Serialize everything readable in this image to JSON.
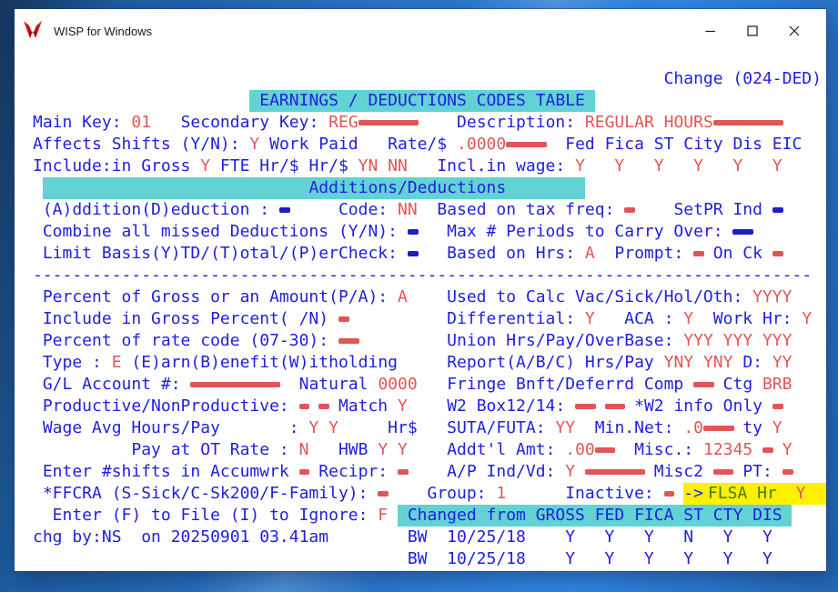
{
  "colors": {
    "blue": "#2020dd",
    "red": "#e25555",
    "navy": "#1e1ec4",
    "cyan": "#62d2d4",
    "yellow": "#fdf000",
    "green": "#447d04"
  },
  "window": {
    "title": "WISP for Windows"
  },
  "screen": {
    "lines": [
      {
        "name": "row-change-mode",
        "segs": [
          {
            "t": "                                                                ",
            "c": "b"
          },
          {
            "t": "Change (024-DED)",
            "c": "b",
            "n": "mode-indicator"
          }
        ]
      },
      {
        "name": "row-screen-title",
        "segs": [
          {
            "t": "                      ",
            "c": "b"
          },
          {
            "t": " EARNINGS / DEDUCTIONS CODES TABLE ",
            "c": "b",
            "bg": "c",
            "n": "screen-title"
          }
        ]
      },
      {
        "name": "row-main-key",
        "segs": [
          {
            "t": "Main Key: ",
            "c": "b"
          },
          {
            "t": "01",
            "c": "r",
            "n": "main-key-value"
          },
          {
            "t": "   ",
            "c": "b"
          },
          {
            "t": "Secondary Key: ",
            "c": "b"
          },
          {
            "t": "REG",
            "c": "r",
            "n": "secondary-key-value"
          },
          {
            "bar": 6,
            "c": "r"
          },
          {
            "t": "    ",
            "c": "b"
          },
          {
            "t": "Description: ",
            "c": "b"
          },
          {
            "t": "REGULAR HOURS",
            "c": "r",
            "n": "description-value"
          },
          {
            "bar": 7,
            "c": "r"
          }
        ]
      },
      {
        "name": "row-affects-shifts",
        "segs": [
          {
            "t": "Affects Shifts (Y/N): ",
            "c": "b"
          },
          {
            "t": "Y",
            "c": "r"
          },
          {
            "t": " Work Paid",
            "c": "b"
          },
          {
            "t": "   ",
            "c": "b"
          },
          {
            "t": "Rate/$ ",
            "c": "b"
          },
          {
            "t": ".0000",
            "c": "r"
          },
          {
            "bar": 4,
            "c": "r"
          },
          {
            "t": "  ",
            "c": "b"
          },
          {
            "t": "Fed Fica ST City Dis EIC",
            "c": "b"
          }
        ]
      },
      {
        "name": "row-include-gross",
        "segs": [
          {
            "t": "Include:in Gross ",
            "c": "b"
          },
          {
            "t": "Y",
            "c": "r"
          },
          {
            "t": " ",
            "c": "b"
          },
          {
            "t": "FTE Hr/$ Hr/$ ",
            "c": "b"
          },
          {
            "t": "YN NN",
            "c": "r"
          },
          {
            "t": "   ",
            "c": "b"
          },
          {
            "t": "Incl.in wage: ",
            "c": "b"
          },
          {
            "t": "Y   Y   Y   Y   Y   Y",
            "c": "r"
          }
        ]
      },
      {
        "name": "row-section-additions",
        "segs": [
          {
            "t": " ",
            "c": "b"
          },
          {
            "t": "                           Additions/Deductions        ",
            "c": "b",
            "bg": "c",
            "n": "section-additions-deductions"
          }
        ]
      },
      {
        "name": "row-addition-deduction",
        "segs": [
          {
            "t": " (A)ddition(D)eduction : ",
            "c": "b"
          },
          {
            "bar": 1,
            "c": "n"
          },
          {
            "t": "     ",
            "c": "b"
          },
          {
            "t": "Code: ",
            "c": "b"
          },
          {
            "t": "NN",
            "c": "r",
            "n": "code-value"
          },
          {
            "t": "  ",
            "c": "b"
          },
          {
            "t": "Based on tax freq: ",
            "c": "b"
          },
          {
            "bar": 1,
            "c": "r"
          },
          {
            "t": "    ",
            "c": "b"
          },
          {
            "t": "SetPR Ind ",
            "c": "b"
          },
          {
            "bar": 1,
            "c": "n"
          }
        ]
      },
      {
        "name": "row-combine-missed",
        "segs": [
          {
            "t": " Combine all missed Deductions (Y/N): ",
            "c": "b"
          },
          {
            "bar": 1,
            "c": "n"
          },
          {
            "t": "   ",
            "c": "b"
          },
          {
            "t": "Max # Periods to Carry Over: ",
            "c": "b"
          },
          {
            "bar": 2,
            "c": "n"
          }
        ]
      },
      {
        "name": "row-limit-basis",
        "segs": [
          {
            "t": " Limit Basis(Y)TD/(T)otal/(P)erCheck: ",
            "c": "b"
          },
          {
            "bar": 1,
            "c": "n"
          },
          {
            "t": "   ",
            "c": "b"
          },
          {
            "t": "Based on Hrs: ",
            "c": "b"
          },
          {
            "t": "A",
            "c": "r"
          },
          {
            "t": "  ",
            "c": "b"
          },
          {
            "t": "Prompt: ",
            "c": "b"
          },
          {
            "bar": 1,
            "c": "r"
          },
          {
            "t": " ",
            "c": "b"
          },
          {
            "t": "On Ck ",
            "c": "b"
          },
          {
            "bar": 1,
            "c": "r"
          }
        ]
      },
      {
        "name": "row-separator",
        "segs": [
          {
            "t": "-------------------------------------------------------------------------------",
            "c": "b",
            "n": "separator"
          }
        ]
      },
      {
        "name": "row-percent-gross",
        "segs": [
          {
            "t": " Percent of Gross or an Amount(P/A): ",
            "c": "b"
          },
          {
            "t": "A",
            "c": "r"
          },
          {
            "t": "    ",
            "c": "b"
          },
          {
            "t": "Used to Calc Vac/Sick/Hol/Oth: ",
            "c": "b"
          },
          {
            "t": "YYYY",
            "c": "r"
          }
        ]
      },
      {
        "name": "row-include-gross-percent",
        "segs": [
          {
            "t": " Include in Gross Percent( /N) ",
            "c": "b"
          },
          {
            "bar": 1,
            "c": "r"
          },
          {
            "t": "          ",
            "c": "b"
          },
          {
            "t": "Differential: ",
            "c": "b"
          },
          {
            "t": "Y",
            "c": "r"
          },
          {
            "t": "   ",
            "c": "b"
          },
          {
            "t": "ACA : ",
            "c": "b"
          },
          {
            "t": "Y",
            "c": "r"
          },
          {
            "t": "  ",
            "c": "b"
          },
          {
            "t": "Work Hr: ",
            "c": "b"
          },
          {
            "t": "Y",
            "c": "r"
          }
        ]
      },
      {
        "name": "row-percent-rate-code",
        "segs": [
          {
            "t": " Percent of rate code (07-30): ",
            "c": "b"
          },
          {
            "bar": 2,
            "c": "r"
          },
          {
            "t": "         ",
            "c": "b"
          },
          {
            "t": "Union Hrs/Pay/OverBase: ",
            "c": "b"
          },
          {
            "t": "YYY YYY YYY",
            "c": "r"
          }
        ]
      },
      {
        "name": "row-type",
        "segs": [
          {
            "t": " Type : ",
            "c": "b"
          },
          {
            "t": "E",
            "c": "r",
            "n": "type-value"
          },
          {
            "t": " ",
            "c": "b"
          },
          {
            "t": "(E)arn(B)enefit(W)itholding",
            "c": "b"
          },
          {
            "t": "     ",
            "c": "b"
          },
          {
            "t": "Report(A/B/C) Hrs/Pay ",
            "c": "b"
          },
          {
            "t": "YNY YNY",
            "c": "r"
          },
          {
            "t": " ",
            "c": "b"
          },
          {
            "t": "D: ",
            "c": "b"
          },
          {
            "t": "YY",
            "c": "r"
          }
        ]
      },
      {
        "name": "row-gl-account",
        "segs": [
          {
            "t": " G/L Account #: ",
            "c": "b"
          },
          {
            "bar": 9,
            "c": "r"
          },
          {
            "t": "  ",
            "c": "b"
          },
          {
            "t": "Natural ",
            "c": "b"
          },
          {
            "t": "0000",
            "c": "r",
            "n": "natural-value"
          },
          {
            "t": "   ",
            "c": "b"
          },
          {
            "t": "Fringe Bnft/Deferrd Comp ",
            "c": "b"
          },
          {
            "bar": 2,
            "c": "r"
          },
          {
            "t": " ",
            "c": "b"
          },
          {
            "t": "Ctg ",
            "c": "b"
          },
          {
            "t": "BRB",
            "c": "r",
            "n": "ctg-value"
          }
        ]
      },
      {
        "name": "row-productive",
        "segs": [
          {
            "t": " Productive/NonProductive: ",
            "c": "b"
          },
          {
            "bar": 1,
            "c": "r"
          },
          {
            "t": " ",
            "c": "b"
          },
          {
            "bar": 1,
            "c": "r"
          },
          {
            "t": " ",
            "c": "b"
          },
          {
            "t": "Match ",
            "c": "b"
          },
          {
            "t": "Y",
            "c": "r"
          },
          {
            "t": "    ",
            "c": "b"
          },
          {
            "t": "W2 Box12/14: ",
            "c": "b"
          },
          {
            "bar": 2,
            "c": "r"
          },
          {
            "t": " ",
            "c": "b"
          },
          {
            "bar": 2,
            "c": "r"
          },
          {
            "t": " ",
            "c": "b"
          },
          {
            "t": "*W2 info Only ",
            "c": "b"
          },
          {
            "bar": 1,
            "c": "r"
          }
        ]
      },
      {
        "name": "row-wage-avg",
        "segs": [
          {
            "t": " Wage Avg Hours/Pay       : ",
            "c": "b"
          },
          {
            "t": "Y Y",
            "c": "r"
          },
          {
            "t": "     ",
            "c": "b"
          },
          {
            "t": "Hr$",
            "c": "b"
          },
          {
            "t": "   ",
            "c": "b"
          },
          {
            "t": "SUTA/FUTA: ",
            "c": "b"
          },
          {
            "t": "YY",
            "c": "r"
          },
          {
            "t": "  ",
            "c": "b"
          },
          {
            "t": "Min.Net: ",
            "c": "b"
          },
          {
            "t": ".0",
            "c": "r"
          },
          {
            "bar": 3,
            "c": "r"
          },
          {
            "t": " ",
            "c": "b"
          },
          {
            "t": "ty ",
            "c": "b"
          },
          {
            "t": "Y",
            "c": "r"
          }
        ]
      },
      {
        "name": "row-pay-ot",
        "segs": [
          {
            "t": "          Pay at OT Rate : ",
            "c": "b"
          },
          {
            "t": "N",
            "c": "r"
          },
          {
            "t": "   ",
            "c": "b"
          },
          {
            "t": "HWB ",
            "c": "b"
          },
          {
            "t": "Y Y",
            "c": "r"
          },
          {
            "t": "    ",
            "c": "b"
          },
          {
            "t": "Addt'l Amt: ",
            "c": "b"
          },
          {
            "t": ".00",
            "c": "r"
          },
          {
            "bar": 2,
            "c": "r"
          },
          {
            "t": "  ",
            "c": "b"
          },
          {
            "t": "Misc.: ",
            "c": "b"
          },
          {
            "t": "12345",
            "c": "r",
            "n": "misc-value"
          },
          {
            "t": " ",
            "c": "b"
          },
          {
            "bar": 1,
            "c": "r"
          },
          {
            "t": " ",
            "c": "b"
          },
          {
            "t": "Y",
            "c": "r"
          }
        ]
      },
      {
        "name": "row-enter-shifts",
        "segs": [
          {
            "t": " Enter #shifts in Accumwrk ",
            "c": "b"
          },
          {
            "bar": 1,
            "c": "r"
          },
          {
            "t": " ",
            "c": "b"
          },
          {
            "t": "Recipr: ",
            "c": "b"
          },
          {
            "bar": 1,
            "c": "r"
          },
          {
            "t": "    ",
            "c": "b"
          },
          {
            "t": "A/P Ind/Vd: ",
            "c": "b"
          },
          {
            "t": "Y",
            "c": "r"
          },
          {
            "t": " ",
            "c": "b"
          },
          {
            "bar": 6,
            "c": "r"
          },
          {
            "t": " ",
            "c": "b"
          },
          {
            "t": "Misc2 ",
            "c": "b"
          },
          {
            "bar": 2,
            "c": "r"
          },
          {
            "t": " ",
            "c": "b"
          },
          {
            "t": "PT: ",
            "c": "b"
          },
          {
            "bar": 1,
            "c": "r"
          }
        ]
      },
      {
        "name": "row-ffcra",
        "segs": [
          {
            "t": " *FFCRA (S-Sick/C-Sk200/F-Family): ",
            "c": "b"
          },
          {
            "bar": 1,
            "c": "r"
          },
          {
            "t": "    ",
            "c": "b"
          },
          {
            "t": "Group: ",
            "c": "b"
          },
          {
            "t": "1",
            "c": "r",
            "n": "group-value"
          },
          {
            "t": "      ",
            "c": "b"
          },
          {
            "t": "Inactive: ",
            "c": "b"
          },
          {
            "bar": 1,
            "c": "r"
          },
          {
            "t": " ",
            "c": "b"
          },
          {
            "t": "->",
            "c": "b",
            "bg": "y",
            "n": "flsa-arrow"
          },
          {
            "t": "FLSA Hr",
            "c": "g",
            "bg": "y",
            "n": "flsa-label"
          },
          {
            "t": " ",
            "c": "g",
            "bg": "y"
          },
          {
            "t": "Y",
            "c": "r",
            "bg": "y",
            "n": "flsa-value"
          },
          {
            "t": "   ",
            "c": "g",
            "bg": "y"
          }
        ]
      },
      {
        "name": "row-enter-file",
        "segs": [
          {
            "t": "  Enter (F) to File (I) to Ignore: ",
            "c": "b"
          },
          {
            "t": "F",
            "c": "r",
            "n": "file-ignore-value"
          },
          {
            "t": " ",
            "c": "b"
          },
          {
            "t": " Changed from GROSS FED FICA ST CTY DIS ",
            "c": "b",
            "bg": "c",
            "n": "changed-from-header"
          }
        ]
      },
      {
        "name": "row-audit-history-1",
        "segs": [
          {
            "t": "chg by:NS  on 20250901 03.41am",
            "c": "b",
            "n": "audit-info"
          },
          {
            "t": "        ",
            "c": "b"
          },
          {
            "t": "BW  10/25/18    ",
            "c": "b",
            "n": "history-entry"
          },
          {
            "t": "Y   Y   Y   N   Y   Y",
            "c": "b",
            "n": "history-flags"
          }
        ]
      },
      {
        "name": "row-audit-history-2",
        "segs": [
          {
            "t": "                                      ",
            "c": "b"
          },
          {
            "t": "BW  10/25/18    ",
            "c": "b",
            "n": "history-entry"
          },
          {
            "t": "Y   Y   Y   Y   Y   Y",
            "c": "b",
            "n": "history-flags"
          }
        ]
      }
    ]
  }
}
